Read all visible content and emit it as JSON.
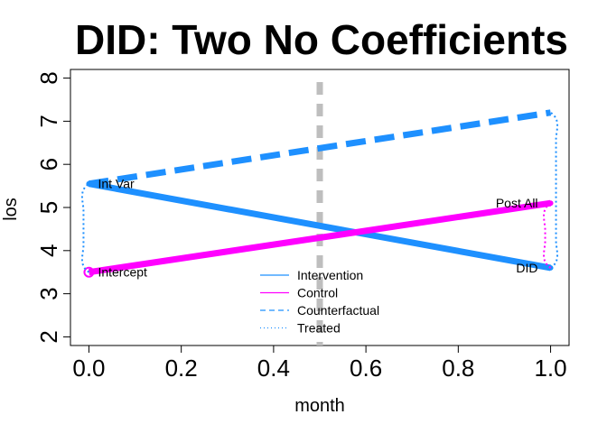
{
  "chart_data": {
    "type": "line",
    "title": "DID: Two No Coefficients",
    "xlabel": "month",
    "ylabel": "los",
    "xlim": [
      -0.04,
      1.04
    ],
    "ylim": [
      1.8,
      8.2
    ],
    "xticks": [
      0.0,
      0.2,
      0.4,
      0.6,
      0.8,
      1.0
    ],
    "xtick_labels": [
      "0.0",
      "0.2",
      "0.4",
      "0.6",
      "0.8",
      "1.0"
    ],
    "yticks": [
      2,
      3,
      4,
      5,
      6,
      7,
      8
    ],
    "ytick_labels": [
      "2",
      "3",
      "4",
      "5",
      "6",
      "7",
      "8"
    ],
    "grid": false,
    "vline": {
      "x": 0.5,
      "color": "#BEBEBE",
      "style": "dashed"
    },
    "series": [
      {
        "name": "Intervention",
        "x": [
          0,
          1
        ],
        "y": [
          5.55,
          3.6
        ],
        "color": "#1E90FF",
        "style": "solid"
      },
      {
        "name": "Control",
        "x": [
          0,
          1
        ],
        "y": [
          3.5,
          5.1
        ],
        "color": "#FF00FF",
        "style": "solid"
      },
      {
        "name": "Counterfactual",
        "x": [
          0,
          1
        ],
        "y": [
          5.55,
          7.2
        ],
        "color": "#1E90FF",
        "style": "dashed"
      },
      {
        "name": "Treated",
        "x": [],
        "y": [],
        "color": "#1E90FF",
        "style": "dotted"
      }
    ],
    "annotations": [
      {
        "label": "Int Var",
        "x": 0.0,
        "y": 5.55,
        "anchor": "start"
      },
      {
        "label": "Intercept",
        "x": 0.0,
        "y": 3.5,
        "anchor": "start"
      },
      {
        "label": "Post All",
        "x": 1.0,
        "y": 5.1,
        "anchor": "end"
      },
      {
        "label": "DID",
        "x": 1.0,
        "y": 3.6,
        "anchor": "end"
      }
    ],
    "braces": [
      {
        "x": 0.0,
        "y0": 3.5,
        "y1": 5.55,
        "color": "#1E90FF",
        "side": "left"
      },
      {
        "x": 1.0,
        "y0": 3.6,
        "y1": 7.2,
        "color": "#1E90FF",
        "side": "right"
      },
      {
        "x": 1.0,
        "y0": 3.6,
        "y1": 5.1,
        "color": "#FF00FF",
        "side": "left"
      }
    ],
    "legend": {
      "placement": "bottom-center",
      "entries": [
        "Intervention",
        "Control",
        "Counterfactual",
        "Treated"
      ]
    }
  }
}
